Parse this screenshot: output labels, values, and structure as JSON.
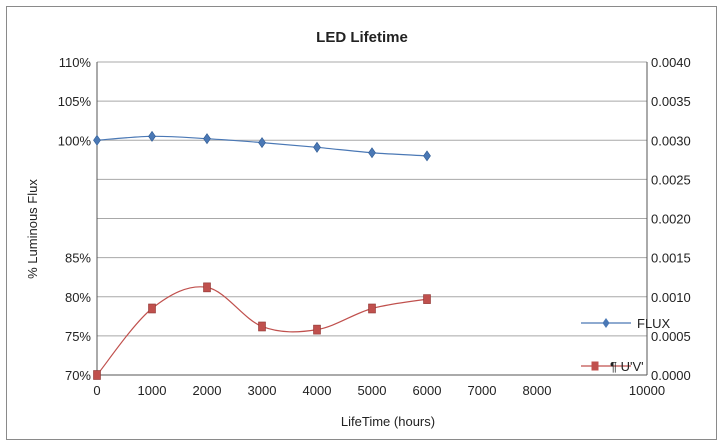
{
  "chart_data": {
    "type": "line",
    "title": "LED Lifetime",
    "xlabel": "LifeTime (hours)",
    "ylabel": "% Luminous Flux",
    "y2label": "",
    "xlim": [
      0,
      10000
    ],
    "x_ticks": [
      "0",
      "1000",
      "2000",
      "3000",
      "4000",
      "5000",
      "6000",
      "7000",
      "8000",
      "10000"
    ],
    "x_tick_values": [
      0,
      1000,
      2000,
      3000,
      4000,
      5000,
      6000,
      7000,
      8000,
      10000
    ],
    "y_ticks": [
      "70%",
      "75%",
      "80%",
      "85%",
      "100%",
      "105%",
      "110%"
    ],
    "y_tick_values": [
      70,
      75,
      80,
      85,
      100,
      105,
      110
    ],
    "y2lim": [
      0,
      0.004
    ],
    "y2_ticks": [
      "0.0000",
      "0.0005",
      "0.0010",
      "0.0015",
      "0.0020",
      "0.0025",
      "0.0030",
      "0.0035",
      "0.0040"
    ],
    "y2_tick_values": [
      0,
      0.0005,
      0.001,
      0.0015,
      0.002,
      0.0025,
      0.003,
      0.0035,
      0.004
    ],
    "grid": true,
    "legend_position": "right",
    "series": [
      {
        "name": "FLUX",
        "axis": "right",
        "color": "#4a78b5",
        "marker": "diamond",
        "x": [
          0,
          1000,
          2000,
          3000,
          4000,
          5000,
          6000
        ],
        "values": [
          0.003,
          0.00305,
          0.00302,
          0.00297,
          0.00291,
          0.00284,
          0.0028
        ]
      },
      {
        "name": "¶  U'V'",
        "axis": "right",
        "color": "#c0504d",
        "marker": "square",
        "x": [
          0,
          1000,
          2000,
          3000,
          4000,
          5000,
          6000
        ],
        "values": [
          0.0,
          0.00085,
          0.00112,
          0.00062,
          0.00058,
          0.00085,
          0.00097
        ]
      }
    ]
  }
}
